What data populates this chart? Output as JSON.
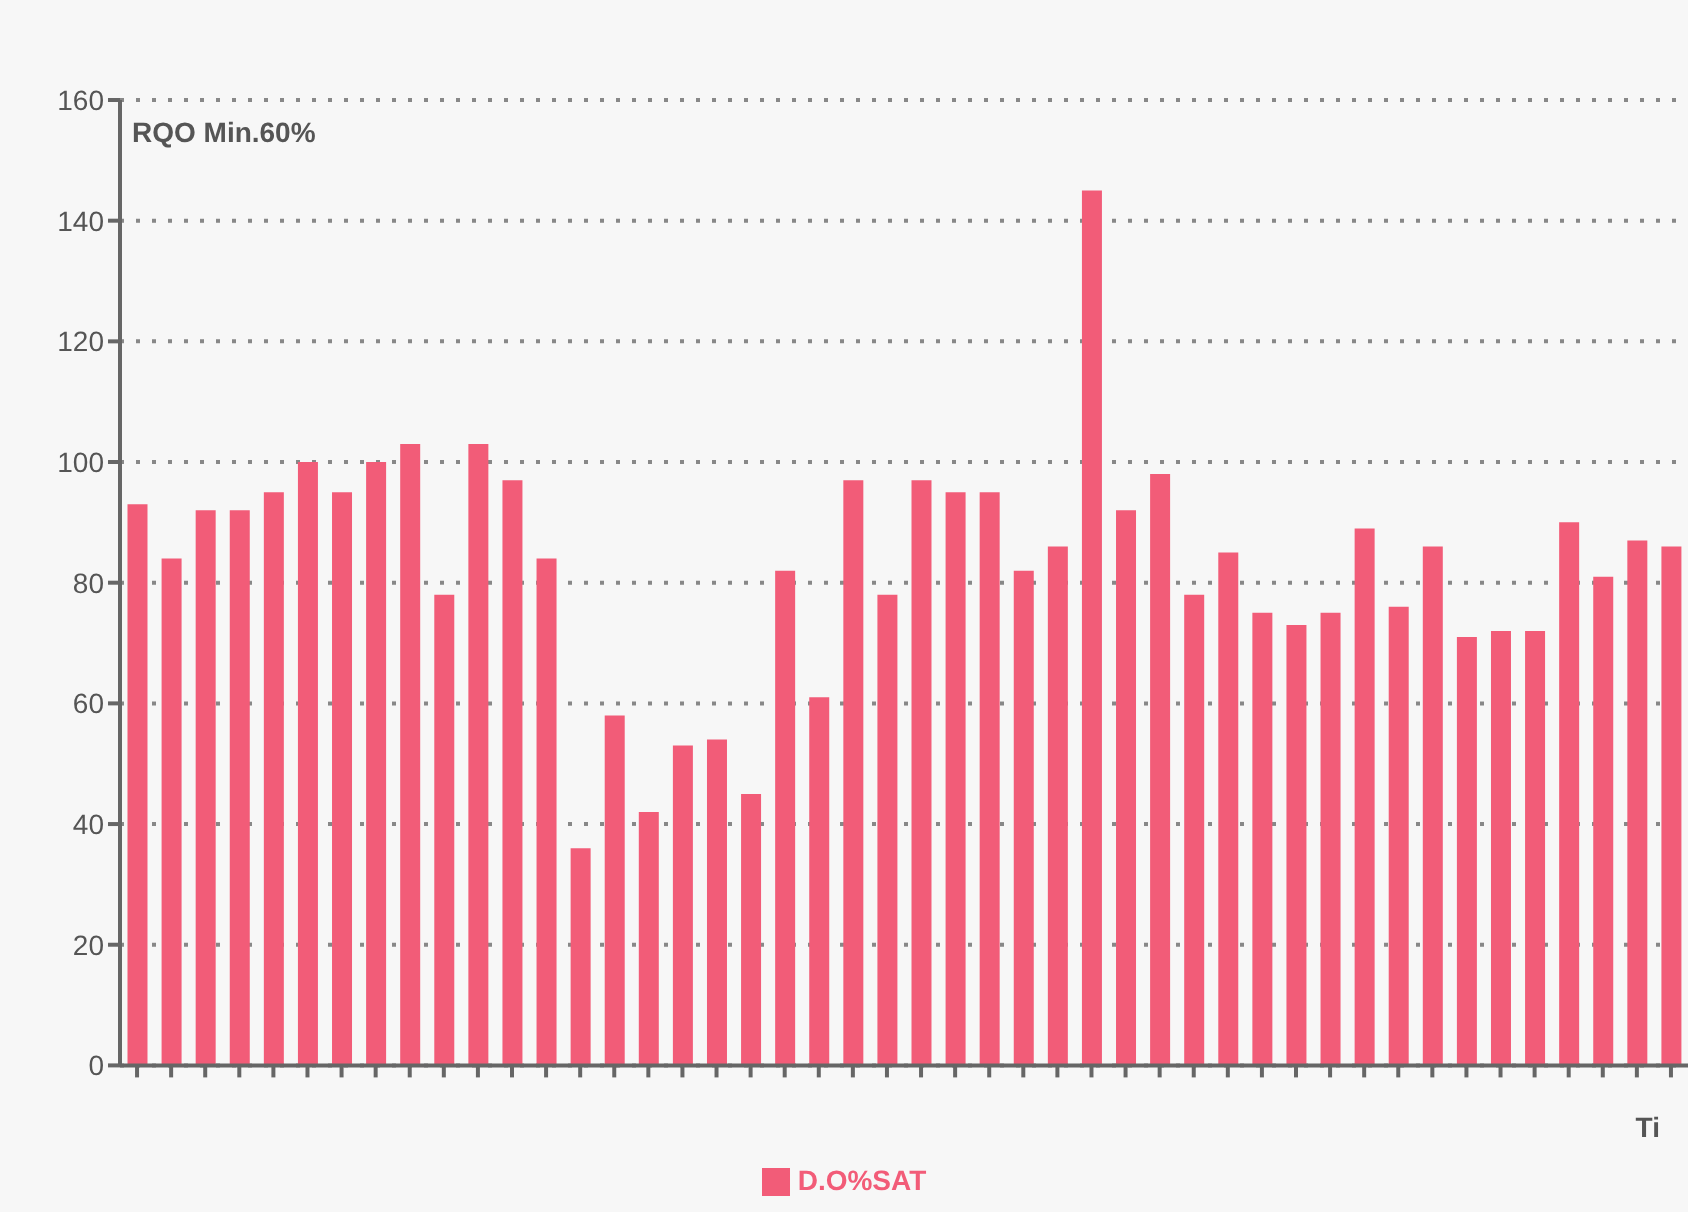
{
  "chart_data": {
    "type": "bar",
    "annotations": [
      "RQO Min.60%"
    ],
    "xlabel": "Ti",
    "categories": [
      null,
      null,
      null,
      null,
      null,
      null,
      null,
      null,
      null,
      null,
      null,
      null,
      null,
      null,
      null,
      null,
      null,
      null,
      null,
      null,
      null,
      null,
      null,
      null,
      null,
      null,
      null,
      null,
      null,
      null,
      null,
      null,
      null,
      null,
      null,
      null,
      null,
      null,
      null,
      null,
      null,
      null,
      null,
      null,
      null,
      null
    ],
    "series": [
      {
        "name": "D.O%SAT",
        "color": "#f25c78",
        "values": [
          93,
          84,
          92,
          92,
          95,
          100,
          95,
          100,
          103,
          78,
          103,
          97,
          84,
          36,
          58,
          42,
          53,
          54,
          45,
          82,
          61,
          97,
          78,
          97,
          95,
          95,
          82,
          86,
          145,
          92,
          98,
          78,
          85,
          75,
          73,
          75,
          89,
          76,
          86,
          71,
          72,
          72,
          90,
          81,
          87,
          86
        ]
      }
    ],
    "ylim": [
      0,
      160
    ],
    "yticks": [
      0,
      20,
      40,
      60,
      80,
      100,
      120,
      140,
      160
    ],
    "grid": "y",
    "legend": "bottom"
  }
}
